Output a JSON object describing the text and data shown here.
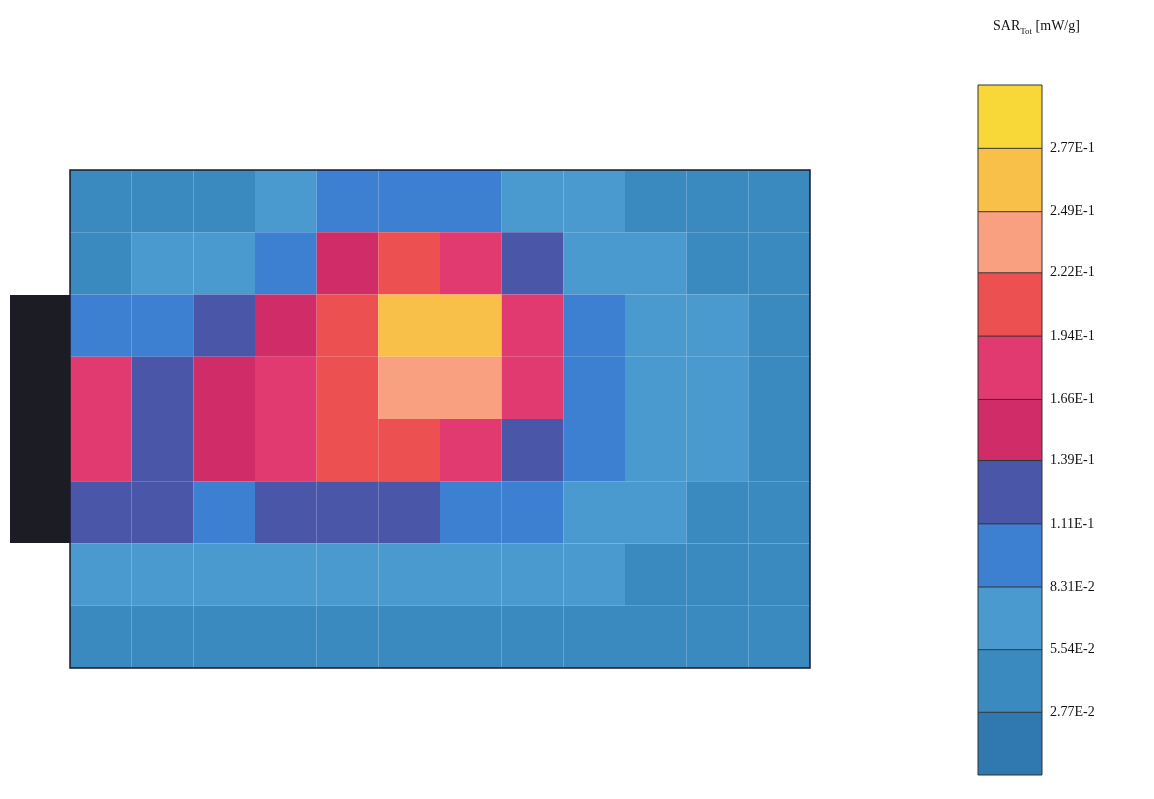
{
  "chart_data": {
    "type": "heatmap",
    "clabel": "SAR$_{Tot}$ [mW/g]",
    "categories": [
      null,
      null,
      null,
      null,
      null,
      null,
      null,
      null,
      null,
      null,
      null,
      null
    ],
    "y_categories": [
      null,
      null,
      null,
      null,
      null,
      null,
      null,
      null
    ],
    "cells": [
      [
        0.042,
        0.042,
        0.042,
        0.069,
        0.097,
        0.097,
        0.097,
        0.069,
        0.069,
        0.042,
        0.042,
        0.042
      ],
      [
        0.042,
        0.069,
        0.069,
        0.097,
        0.152,
        0.208,
        0.18,
        0.125,
        0.069,
        0.069,
        0.042,
        0.042
      ],
      [
        0.097,
        0.097,
        0.125,
        0.152,
        0.208,
        0.263,
        0.263,
        0.18,
        0.097,
        0.069,
        0.069,
        0.042
      ],
      [
        0.18,
        0.125,
        0.152,
        0.18,
        0.208,
        0.235,
        0.235,
        0.18,
        0.097,
        0.069,
        0.069,
        0.042
      ],
      [
        0.18,
        0.125,
        0.152,
        0.18,
        0.208,
        0.208,
        0.18,
        0.125,
        0.097,
        0.069,
        0.069,
        0.042
      ],
      [
        0.125,
        0.125,
        0.097,
        0.125,
        0.125,
        0.125,
        0.097,
        0.097,
        0.069,
        0.069,
        0.042,
        0.042
      ],
      [
        0.069,
        0.069,
        0.069,
        0.069,
        0.069,
        0.069,
        0.069,
        0.069,
        0.069,
        0.042,
        0.042,
        0.042
      ],
      [
        0.042,
        0.042,
        0.042,
        0.042,
        0.042,
        0.042,
        0.042,
        0.042,
        0.042,
        0.042,
        0.042,
        0.042
      ]
    ],
    "clim": [
      0,
      0.305
    ],
    "cticks": [
      {
        "value": 0.0277,
        "label": "2.77E-2"
      },
      {
        "value": 0.0554,
        "label": "5.54E-2"
      },
      {
        "value": 0.0831,
        "label": "8.31E-2"
      },
      {
        "value": 0.111,
        "label": "1.11E-1"
      },
      {
        "value": 0.139,
        "label": "1.39E-1"
      },
      {
        "value": 0.166,
        "label": "1.66E-1"
      },
      {
        "value": 0.194,
        "label": "1.94E-1"
      },
      {
        "value": 0.222,
        "label": "2.22E-1"
      },
      {
        "value": 0.249,
        "label": "2.49E-1"
      },
      {
        "value": 0.277,
        "label": "2.77E-1"
      }
    ],
    "colors": [
      "#2f78b0",
      "#3a8ac0",
      "#4a9ad0",
      "#3d7fd0",
      "#4a56a8",
      "#d02c68",
      "#e03a70",
      "#ec5050",
      "#f8a080",
      "#f8c048",
      "#f8d838"
    ],
    "tick_labels": false,
    "grid": false
  }
}
